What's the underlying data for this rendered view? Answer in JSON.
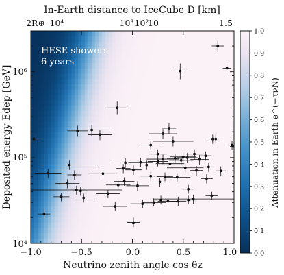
{
  "chart_data": {
    "type": "scatter",
    "title": "",
    "top_axis_label": "In-Earth distance to IceCube D [km]",
    "top_tick_labels": [
      "2R⊕",
      "10⁴",
      "10³",
      "10²",
      "10",
      "1.5"
    ],
    "xlabel": "Neutrino zenith angle cos θz",
    "ylabel": "Deposited energy Edep [GeV]",
    "colorbar_label": "Attenuation in Earth e^(−τνN)",
    "annotation_line1": "HESE showers",
    "annotation_line2": "6 years",
    "xlim": [
      -1.0,
      1.0
    ],
    "ylim": [
      10000,
      3000000
    ],
    "yscale": "log",
    "x_tick_labels": [
      "−1.0",
      "−0.5",
      "0.0",
      "0.5",
      "1.0"
    ],
    "x_ticks": [
      -1.0,
      -0.5,
      0.0,
      0.5,
      1.0
    ],
    "y_tick_labels": [
      "10⁴",
      "10⁵",
      "10⁶"
    ],
    "y_ticks": [
      10000,
      100000,
      1000000
    ],
    "colorbar_ticks": [
      0.0,
      0.1,
      0.2,
      0.3,
      0.4,
      0.5,
      0.6,
      0.7,
      0.8,
      0.9,
      1.0
    ],
    "colorbar_tick_labels": [
      "0.0",
      "0.1",
      "0.2",
      "0.3",
      "0.4",
      "0.5",
      "0.6",
      "0.7",
      "0.8",
      "0.9",
      "1.0"
    ],
    "colors": {
      "high_attenuation": "#0d3f6b",
      "mid": "#2f86c2",
      "low_attenuation": "#fbf2f7"
    },
    "points": [
      {
        "x": 0.84,
        "y": 2000000,
        "xerr": 0.06,
        "ylo": 1700000,
        "yhi": 2300000
      },
      {
        "x": 0.93,
        "y": 1100000,
        "xerr": 0.04,
        "ylo": 950000,
        "yhi": 1300000
      },
      {
        "x": 0.47,
        "y": 1020000,
        "xerr": 0.09,
        "ylo": 820000,
        "yhi": 1250000
      },
      {
        "x": -0.15,
        "y": 380000,
        "xerr": 0.1,
        "ylo": 320000,
        "yhi": 450000
      },
      {
        "x": 0.36,
        "y": 220000,
        "xerr": 0.07,
        "ylo": 190000,
        "yhi": 250000
      },
      {
        "x": -0.4,
        "y": 210000,
        "xerr": 0.22,
        "ylo": 180000,
        "yhi": 240000
      },
      {
        "x": -0.54,
        "y": 205000,
        "xerr": 0.1,
        "ylo": 175000,
        "yhi": 235000
      },
      {
        "x": 0.3,
        "y": 190000,
        "xerr": 0.14,
        "ylo": 165000,
        "yhi": 215000
      },
      {
        "x": -0.32,
        "y": 185000,
        "xerr": 0.12,
        "ylo": 160000,
        "yhi": 210000
      },
      {
        "x": 0.79,
        "y": 165000,
        "xerr": 0.05,
        "ylo": 145000,
        "yhi": 185000
      },
      {
        "x": 0.82,
        "y": 165000,
        "xerr": 0.05,
        "ylo": 145000,
        "yhi": 185000
      },
      {
        "x": -0.97,
        "y": 165000,
        "xerr": 0.07,
        "ylo": 145000,
        "yhi": 185000
      },
      {
        "x": 0.4,
        "y": 155000,
        "xerr": 0.2,
        "ylo": 135000,
        "yhi": 175000
      },
      {
        "x": 0.18,
        "y": 140000,
        "xerr": 0.11,
        "ylo": 122000,
        "yhi": 158000
      },
      {
        "x": 0.98,
        "y": 140000,
        "xerr": 0.04,
        "ylo": 122000,
        "yhi": 158000
      },
      {
        "x": 0.99,
        "y": 135000,
        "xerr": 0.03,
        "ylo": 118000,
        "yhi": 152000
      },
      {
        "x": 0.61,
        "y": 110000,
        "xerr": 0.08,
        "ylo": 95000,
        "yhi": 125000
      },
      {
        "x": 0.25,
        "y": 110000,
        "xerr": 0.09,
        "ylo": 95000,
        "yhi": 125000
      },
      {
        "x": 0.72,
        "y": 105000,
        "xerr": 0.06,
        "ylo": 92000,
        "yhi": 118000
      },
      {
        "x": 0.5,
        "y": 102000,
        "xerr": 0.13,
        "ylo": 89000,
        "yhi": 115000
      },
      {
        "x": 0.54,
        "y": 100000,
        "xerr": 0.1,
        "ylo": 87000,
        "yhi": 113000
      },
      {
        "x": 0.42,
        "y": 98000,
        "xerr": 0.08,
        "ylo": 86000,
        "yhi": 110000
      },
      {
        "x": 0.3,
        "y": 96000,
        "xerr": 0.16,
        "ylo": 84000,
        "yhi": 108000
      },
      {
        "x": 0.66,
        "y": 95000,
        "xerr": 0.09,
        "ylo": 83000,
        "yhi": 107000
      },
      {
        "x": 0.48,
        "y": 93000,
        "xerr": 0.12,
        "ylo": 81000,
        "yhi": 105000
      },
      {
        "x": 0.25,
        "y": 90000,
        "xerr": 0.1,
        "ylo": 79000,
        "yhi": 101000
      },
      {
        "x": 0.08,
        "y": 88000,
        "xerr": 0.12,
        "ylo": 77000,
        "yhi": 99000
      },
      {
        "x": -0.07,
        "y": 87000,
        "xerr": 0.12,
        "ylo": 76000,
        "yhi": 98000
      },
      {
        "x": 0.37,
        "y": 85000,
        "xerr": 0.14,
        "ylo": 75000,
        "yhi": 96000
      },
      {
        "x": 0.14,
        "y": 82000,
        "xerr": 0.09,
        "ylo": 72000,
        "yhi": 92000
      },
      {
        "x": -0.62,
        "y": 82000,
        "xerr": 0.28,
        "ylo": 72000,
        "yhi": 92000
      },
      {
        "x": 0.75,
        "y": 78000,
        "xerr": 0.05,
        "ylo": 68000,
        "yhi": 88000
      },
      {
        "x": 0.52,
        "y": 76000,
        "xerr": 0.18,
        "ylo": 67000,
        "yhi": 85000
      },
      {
        "x": -0.09,
        "y": 75000,
        "xerr": 0.07,
        "ylo": 66000,
        "yhi": 84000
      },
      {
        "x": 0.01,
        "y": 72000,
        "xerr": 0.08,
        "ylo": 63000,
        "yhi": 81000
      },
      {
        "x": 0.63,
        "y": 71000,
        "xerr": 0.06,
        "ylo": 62000,
        "yhi": 80000
      },
      {
        "x": 0.87,
        "y": 70000,
        "xerr": 0.05,
        "ylo": 61000,
        "yhi": 79000
      },
      {
        "x": -0.83,
        "y": 66000,
        "xerr": 0.13,
        "ylo": 58000,
        "yhi": 74000
      },
      {
        "x": -0.29,
        "y": 65000,
        "xerr": 0.14,
        "ylo": 57000,
        "yhi": 73000
      },
      {
        "x": -0.57,
        "y": 63000,
        "xerr": 0.07,
        "ylo": 55000,
        "yhi": 71000
      },
      {
        "x": 0.18,
        "y": 61000,
        "xerr": 0.1,
        "ylo": 54000,
        "yhi": 68000
      },
      {
        "x": 0.32,
        "y": 60000,
        "xerr": 0.08,
        "ylo": 53000,
        "yhi": 67000
      },
      {
        "x": 0.44,
        "y": 59000,
        "xerr": 0.13,
        "ylo": 52000,
        "yhi": 66000
      },
      {
        "x": 0.73,
        "y": 57000,
        "xerr": 0.06,
        "ylo": 50000,
        "yhi": 64000
      },
      {
        "x": -0.08,
        "y": 53000,
        "xerr": 0.1,
        "ylo": 47000,
        "yhi": 59000
      },
      {
        "x": 0.27,
        "y": 52000,
        "xerr": 0.08,
        "ylo": 46000,
        "yhi": 58000
      },
      {
        "x": -0.64,
        "y": 50000,
        "xerr": 0.12,
        "ylo": 44000,
        "yhi": 56000
      },
      {
        "x": -0.14,
        "y": 48000,
        "xerr": 0.12,
        "ylo": 42000,
        "yhi": 54000
      },
      {
        "x": 0.05,
        "y": 47000,
        "xerr": 0.11,
        "ylo": 41000,
        "yhi": 53000
      },
      {
        "x": 0.55,
        "y": 43000,
        "xerr": 0.05,
        "ylo": 38000,
        "yhi": 48000
      },
      {
        "x": -0.55,
        "y": 42000,
        "xerr": 0.45,
        "ylo": 37000,
        "yhi": 47000
      },
      {
        "x": -0.51,
        "y": 41000,
        "xerr": 0.06,
        "ylo": 36000,
        "yhi": 46000
      },
      {
        "x": -0.24,
        "y": 38000,
        "xerr": 0.12,
        "ylo": 34000,
        "yhi": 42000
      },
      {
        "x": 0.78,
        "y": 36000,
        "xerr": 0.06,
        "ylo": 32000,
        "yhi": 40000
      },
      {
        "x": -0.7,
        "y": 35000,
        "xerr": 0.08,
        "ylo": 31000,
        "yhi": 39000
      },
      {
        "x": -0.48,
        "y": 34000,
        "xerr": 0.1,
        "ylo": 30000,
        "yhi": 38000
      },
      {
        "x": 0.6,
        "y": 33000,
        "xerr": 0.4,
        "ylo": 29000,
        "yhi": 37000
      },
      {
        "x": 0.55,
        "y": 32000,
        "xerr": 0.08,
        "ylo": 28500,
        "yhi": 36000
      },
      {
        "x": 0.28,
        "y": 32000,
        "xerr": 0.08,
        "ylo": 28500,
        "yhi": 36000
      },
      {
        "x": 0.35,
        "y": 31000,
        "xerr": 0.1,
        "ylo": 27500,
        "yhi": 35000
      },
      {
        "x": 0.45,
        "y": 31000,
        "xerr": 0.08,
        "ylo": 27500,
        "yhi": 35000
      },
      {
        "x": 0.21,
        "y": 30000,
        "xerr": 0.12,
        "ylo": 27000,
        "yhi": 33500
      },
      {
        "x": 0.1,
        "y": 29000,
        "xerr": 0.12,
        "ylo": 26000,
        "yhi": 32500
      },
      {
        "x": -0.17,
        "y": 27000,
        "xerr": 0.12,
        "ylo": 24000,
        "yhi": 30500
      },
      {
        "x": -0.87,
        "y": 22000,
        "xerr": 0.06,
        "ylo": 19500,
        "yhi": 25000
      },
      {
        "x": 0.01,
        "y": 17500,
        "xerr": 0.06,
        "ylo": 15500,
        "yhi": 20000
      }
    ]
  }
}
